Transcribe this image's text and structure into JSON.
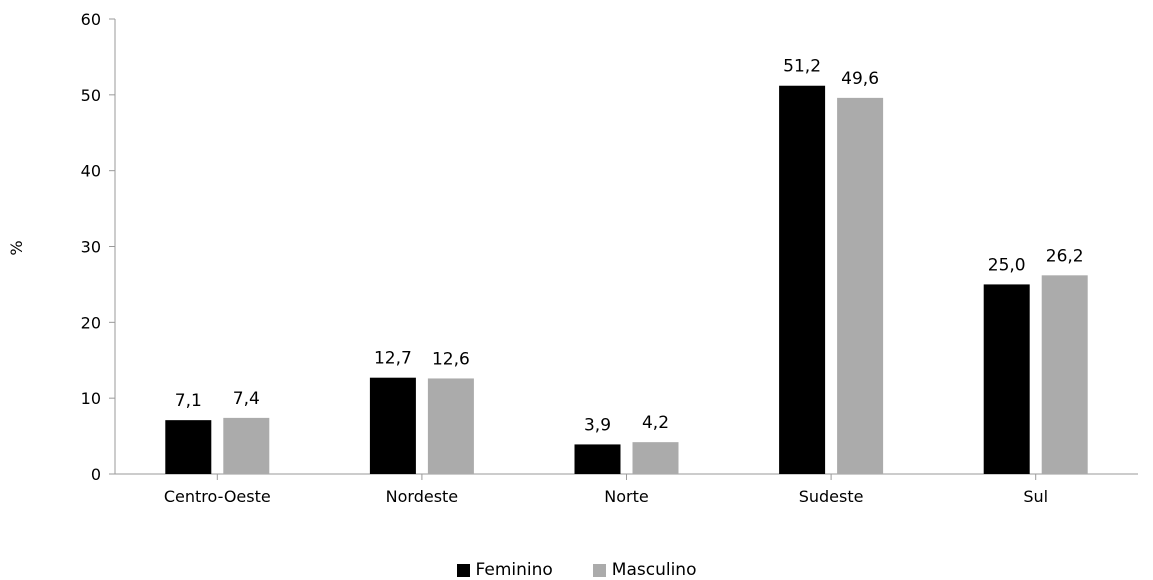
{
  "chart_data": {
    "type": "bar",
    "categories": [
      "Centro-Oeste",
      "Nordeste",
      "Norte",
      "Sudeste",
      "Sul"
    ],
    "series": [
      {
        "name": "Feminino",
        "color": "#000000",
        "values": [
          7.1,
          12.7,
          3.9,
          51.2,
          25.0
        ],
        "labels": [
          "7,1",
          "12,7",
          "3,9",
          "51,2",
          "25,0"
        ]
      },
      {
        "name": "Masculino",
        "color": "#ababab",
        "values": [
          7.4,
          12.6,
          4.2,
          49.6,
          26.2
        ],
        "labels": [
          "7,4",
          "12,6",
          "4,2",
          "49,6",
          "26,2"
        ]
      }
    ],
    "ylabel": "%",
    "ylim": [
      0,
      60
    ],
    "yticks": [
      0,
      10,
      20,
      30,
      40,
      50,
      60
    ],
    "grid": false,
    "legend_position": "bottom-center"
  }
}
